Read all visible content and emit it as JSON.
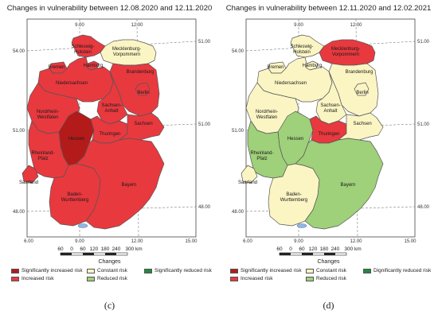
{
  "colors": {
    "sig_increased": "#b31b1b",
    "increased": "#e8393f",
    "constant": "#fbf5c4",
    "reduced": "#9fd07a",
    "sig_reduced": "#1f8a3b",
    "lake": "#8fb7e8",
    "border": "#555555"
  },
  "changes_title": "Changes",
  "legend": {
    "sig_increased": "Significantly increased risk",
    "increased": "Increased risk",
    "constant": "Constant risk",
    "reduced": "Reduced risk",
    "sig_reduced_c": "Significantly reduced risk",
    "sig_reduced_d": "Dignificantly reduced risk"
  },
  "scale": {
    "labels": [
      "60",
      "0",
      "60",
      "120",
      "180",
      "240",
      "300 km"
    ]
  },
  "frame": {
    "left_lat": [
      "54.00",
      "51.00",
      "48.00"
    ],
    "right_lat": [
      "51.00",
      "51.00",
      "48.00"
    ],
    "lon": [
      "6.00",
      "9.00",
      "12.00",
      "15.00"
    ]
  },
  "states": {
    "sh": "Schleswig-\nHolstein",
    "mv": "Mecklenburg-\nVorpommern",
    "hh": "Hamburg",
    "hb": "Bremen",
    "ni": "Niedersachsen",
    "bb": "Brandenburg",
    "be": "Berlin",
    "st": "Sachsen-\nAnhalt",
    "nw": "Nordrhein-\nWestfalen",
    "he": "Hessen",
    "th": "Thuringen",
    "sn": "Sachsen",
    "rp": "Rheinland-\nPfalz",
    "sl": "Saarland",
    "bw": "Baden-\nWurttemberg",
    "by": "Bayern"
  },
  "panels": [
    {
      "id": "c",
      "title": "Changes in vulnerability between 12.08.2020 and 12.11.2020",
      "caption": "(c)",
      "risk": {
        "sh": "increased",
        "mv": "constant",
        "hh": "increased",
        "hb": "increased",
        "ni": "increased",
        "bb": "increased",
        "be": "increased",
        "st": "increased",
        "nw": "increased",
        "he": "sig_increased",
        "th": "increased",
        "sn": "increased",
        "rp": "increased",
        "sl": "increased",
        "bw": "increased",
        "by": "increased"
      }
    },
    {
      "id": "d",
      "title": "Changes in vulnerability between 12.11.2020 and 12.02.2021",
      "caption": "(d)",
      "risk": {
        "sh": "constant",
        "mv": "increased",
        "hh": "constant",
        "hb": "constant",
        "ni": "constant",
        "bb": "constant",
        "be": "constant",
        "st": "constant",
        "nw": "constant",
        "he": "reduced",
        "th": "increased",
        "sn": "constant",
        "rp": "reduced",
        "sl": "constant",
        "bw": "constant",
        "by": "reduced"
      }
    }
  ]
}
